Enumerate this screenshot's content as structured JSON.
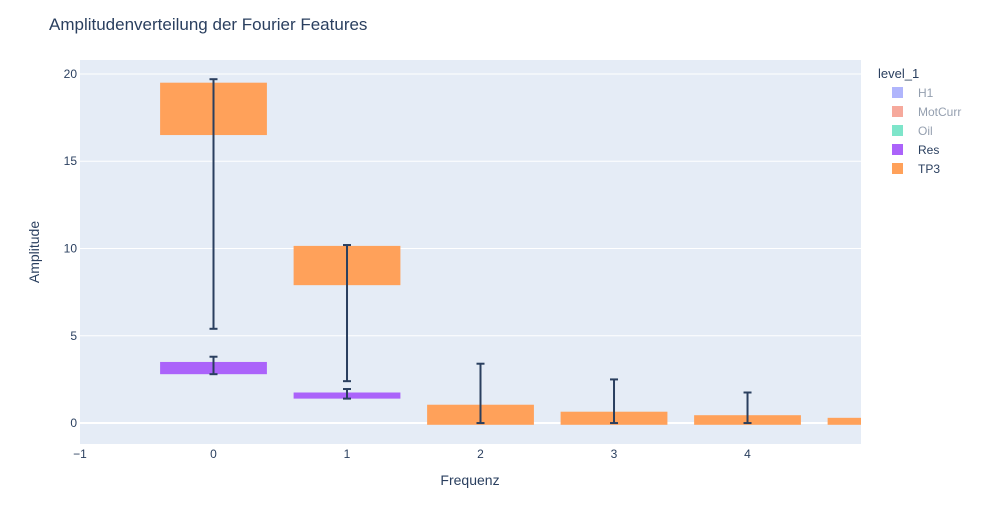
{
  "chart_data": {
    "type": "bar",
    "title": "Amplitudenverteilung der Fourier Features",
    "xlabel": "Frequenz",
    "ylabel": "Amplitude",
    "xlim": [
      -1,
      4.85
    ],
    "ylim": [
      -1.2,
      20.8
    ],
    "x_ticks": [
      "−1",
      "0",
      "1",
      "2",
      "3",
      "4"
    ],
    "y_ticks": [
      "0",
      "5",
      "10",
      "15",
      "20"
    ],
    "grid": true,
    "legend_title": "level_1",
    "legend_position": "right",
    "colors": {
      "plot_bg": "#e5ecf6",
      "grid": "#ffffff",
      "error_bar": "#2a3f5f",
      "H1": "#636efa",
      "MotCurr": "#EF553B",
      "Oil": "#00cc96",
      "Res": "#ab63fa",
      "TP3": "#FFA15A"
    },
    "legend": [
      {
        "name": "H1",
        "visible": false
      },
      {
        "name": "MotCurr",
        "visible": false
      },
      {
        "name": "Oil",
        "visible": false
      },
      {
        "name": "Res",
        "visible": true
      },
      {
        "name": "TP3",
        "visible": true
      }
    ],
    "series": [
      {
        "name": "TP3",
        "bars": [
          {
            "x": 0,
            "base": 16.5,
            "top": 19.5,
            "err_low": 5.4,
            "err_high": 19.7
          },
          {
            "x": 1,
            "base": 7.9,
            "top": 10.15,
            "err_low": 2.4,
            "err_high": 10.2
          },
          {
            "x": 2,
            "base": -0.1,
            "top": 1.05,
            "err_low": 0.0,
            "err_high": 3.4
          },
          {
            "x": 3,
            "base": -0.1,
            "top": 0.65,
            "err_low": 0.0,
            "err_high": 2.5
          },
          {
            "x": 4,
            "base": -0.1,
            "top": 0.45,
            "err_low": 0.0,
            "err_high": 1.75
          },
          {
            "x": 5,
            "base": -0.1,
            "top": 0.3,
            "err_low": null,
            "err_high": null
          }
        ]
      },
      {
        "name": "Res",
        "bars": [
          {
            "x": 0,
            "base": 2.8,
            "top": 3.5,
            "err_low": 2.8,
            "err_high": 3.8
          },
          {
            "x": 1,
            "base": 1.4,
            "top": 1.75,
            "err_low": 1.4,
            "err_high": 1.95
          }
        ]
      }
    ]
  }
}
